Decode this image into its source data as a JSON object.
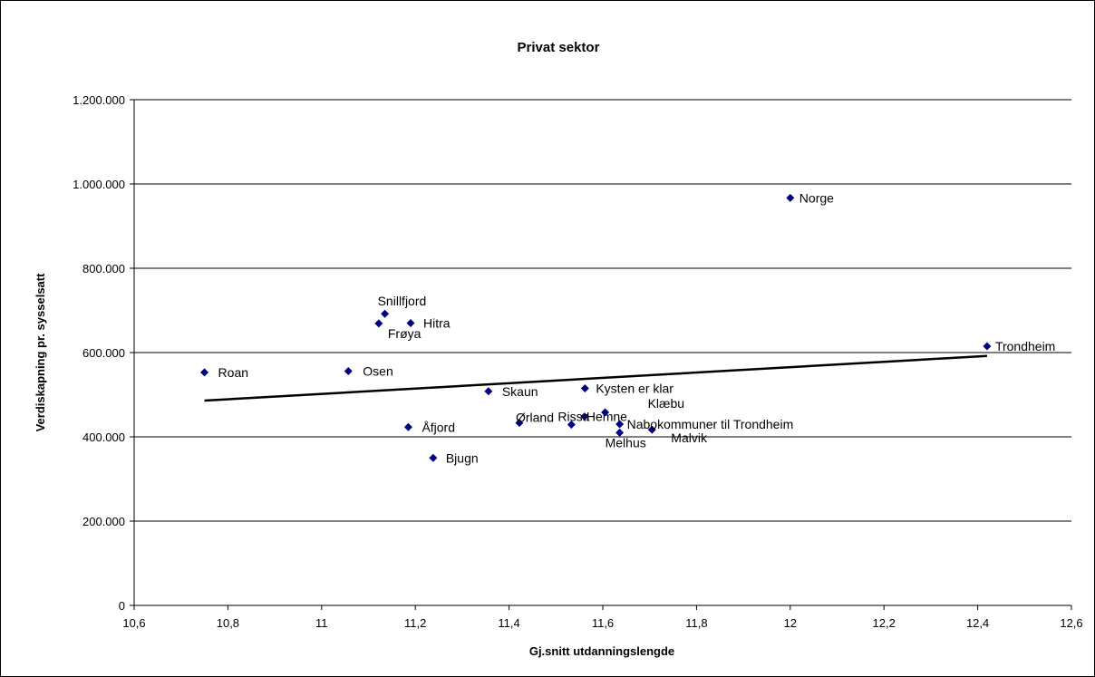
{
  "chart_data": {
    "type": "scatter",
    "title": "Privat sektor",
    "xlabel": "Gj.snitt utdanningslengde",
    "ylabel": "Verdiskapning pr. sysselsatt",
    "xlim": [
      10.6,
      12.6
    ],
    "ylim": [
      0,
      1200000
    ],
    "x_ticks": [
      "10,6",
      "10,8",
      "11",
      "11,2",
      "11,4",
      "11,6",
      "11,8",
      "12",
      "12,2",
      "12,4",
      "12,6"
    ],
    "y_ticks": [
      "0",
      "200.000",
      "400.000",
      "600.000",
      "800.000",
      "1.000.000",
      "1.200.000"
    ],
    "grid": "horizontal",
    "marker_color": "#00007f",
    "trendline": {
      "x": [
        10.75,
        12.42
      ],
      "y": [
        486000,
        592000
      ],
      "color": "#000000"
    },
    "points": [
      {
        "name": "Norge",
        "x": 12.0,
        "y": 967000
      },
      {
        "name": "Trondheim",
        "x": 12.42,
        "y": 615000
      },
      {
        "name": "Snillfjord",
        "x": 11.135,
        "y": 692000
      },
      {
        "name": "Frøya",
        "x": 11.122,
        "y": 669000
      },
      {
        "name": "Hitra",
        "x": 11.19,
        "y": 670000
      },
      {
        "name": "Roan",
        "x": 10.75,
        "y": 553000
      },
      {
        "name": "Osen",
        "x": 11.057,
        "y": 556000
      },
      {
        "name": "Skaun",
        "x": 11.356,
        "y": 508000
      },
      {
        "name": "Kysten er klar",
        "x": 11.562,
        "y": 515000
      },
      {
        "name": "Åfjord",
        "x": 11.185,
        "y": 423000
      },
      {
        "name": "Bjugn",
        "x": 11.238,
        "y": 350000
      },
      {
        "name": "Ørland",
        "x": 11.422,
        "y": 433000
      },
      {
        "name": "Rissa",
        "x": 11.533,
        "y": 429000
      },
      {
        "name": "Hemne",
        "x": 11.561,
        "y": 448000
      },
      {
        "name": "Klæbu",
        "x": 11.605,
        "y": 458000
      },
      {
        "name": "Melhus",
        "x": 11.636,
        "y": 410000
      },
      {
        "name": "Nabokommuner til Trondheim",
        "x": 11.636,
        "y": 430000
      },
      {
        "name": "Malvik",
        "x": 11.705,
        "y": 417000
      }
    ]
  }
}
